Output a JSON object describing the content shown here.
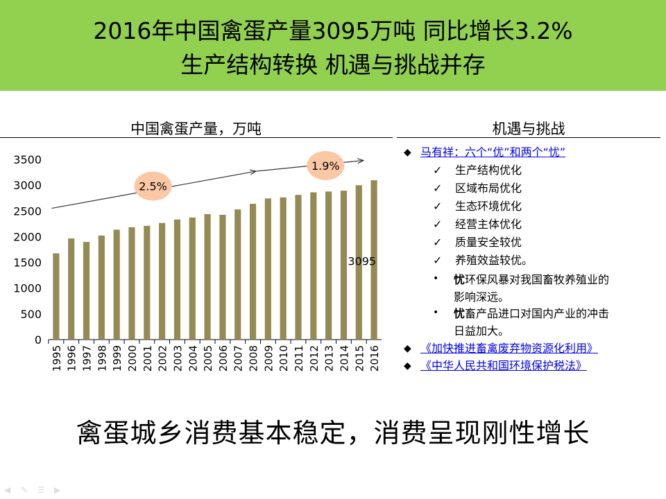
{
  "header": {
    "line1": "2016年中国禽蛋产量3095万吨 同比增长3.2%",
    "line2": "生产结构转换 机遇与挑战并存",
    "bg_color": "#92d050"
  },
  "chart_data": {
    "type": "bar",
    "title": "中国禽蛋产量，万吨",
    "categories": [
      "1995",
      "1996",
      "1997",
      "1998",
      "1999",
      "2000",
      "2001",
      "2002",
      "2003",
      "2004",
      "2005",
      "2006",
      "2007",
      "2008",
      "2009",
      "2010",
      "2011",
      "2012",
      "2013",
      "2014",
      "2015",
      "2016"
    ],
    "values": [
      1676,
      1965,
      1897,
      2021,
      2135,
      2182,
      2210,
      2265,
      2333,
      2371,
      2438,
      2424,
      2529,
      2638,
      2742,
      2762,
      2811,
      2861,
      2876,
      2893,
      2999,
      3095
    ],
    "ylim": [
      0,
      3500
    ],
    "yticks": [
      0,
      500,
      1000,
      1500,
      2000,
      2500,
      3000,
      3500
    ],
    "bar_color": "#948a54",
    "data_label": "3095",
    "annotations": [
      {
        "label": "2.5%"
      },
      {
        "label": "1.9%"
      }
    ],
    "bubble_color": "#fbc7a4"
  },
  "right_panel": {
    "title": "机遇与挑战",
    "link1": "马有祥：六个“优”和两个“忧”",
    "checks": [
      "生产结构优化",
      "区域布局优化",
      "生态环境优化",
      "经营主体优化",
      "质量安全较优",
      "养殖效益较优。"
    ],
    "worries": [
      {
        "bold": "忧",
        "line1": "环保风暴对我国畜牧养殖业的",
        "line2": "影响深远。"
      },
      {
        "bold": "忧",
        "line1": "畜产品进口对国内产业的冲击",
        "line2": "日益加大。"
      }
    ],
    "link2": "《加快推进畜禽废弃物资源化利用》",
    "link3": "《中华人民共和国环境保护税法》"
  },
  "footer": {
    "text": "禽蛋城乡消费基本稳定，消费呈现刚性增长"
  }
}
